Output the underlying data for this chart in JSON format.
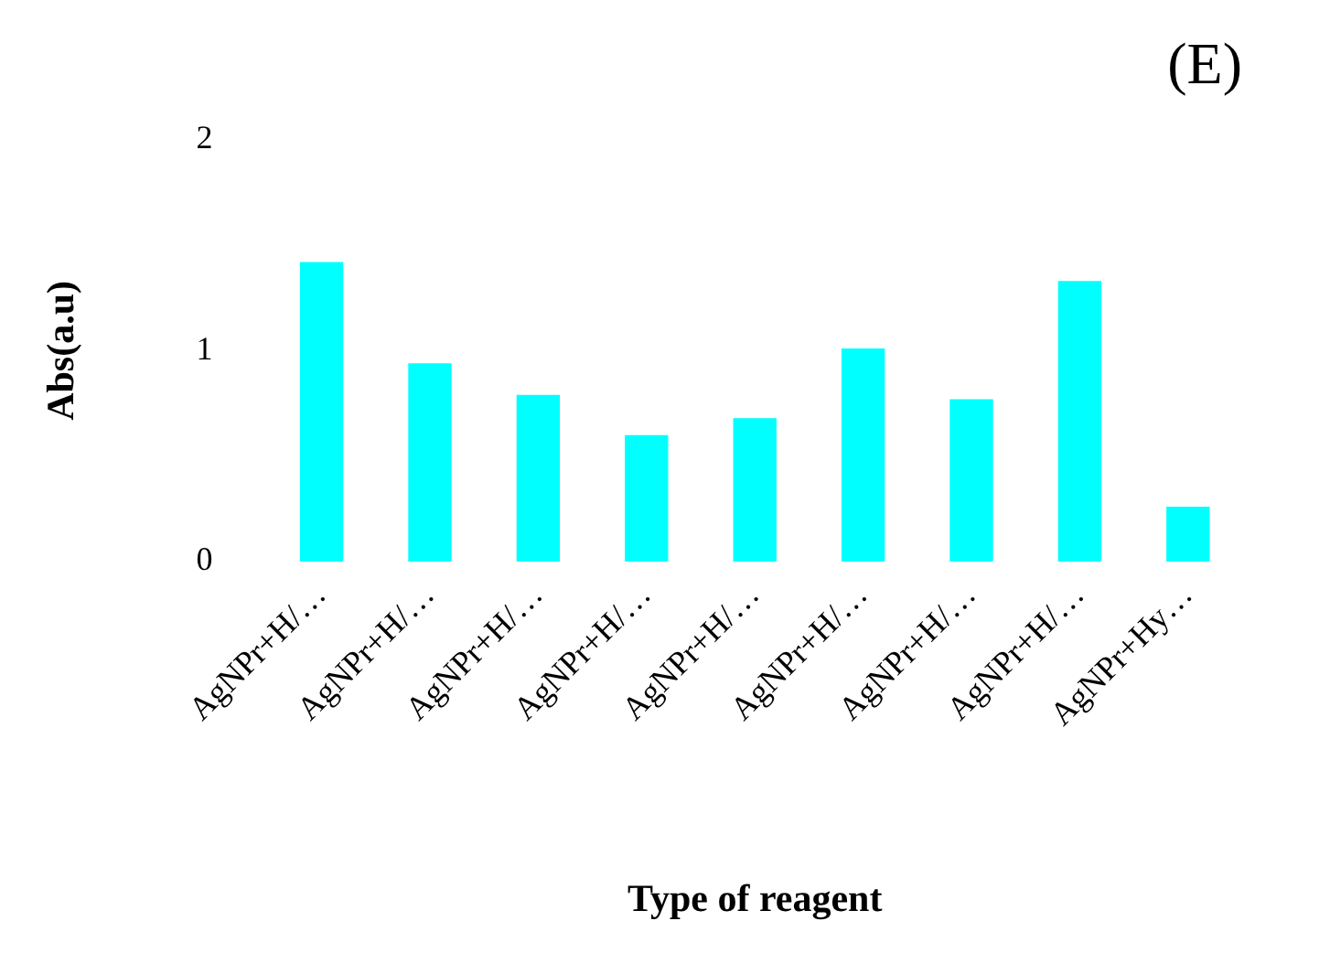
{
  "chart_data": {
    "type": "bar",
    "title": "(E)",
    "xlabel": "Type of reagent",
    "ylabel": "Abs(a.u)",
    "categories": [
      "AgNPr+H/…",
      "AgNPr+H/…",
      "AgNPr+H/…",
      "AgNPr+H/…",
      "AgNPr+H/…",
      "AgNPr+H/…",
      "AgNPr+H/…",
      "AgNPr+H/…",
      "AgNPr+Hy…"
    ],
    "values": [
      1.42,
      0.94,
      0.79,
      0.6,
      0.68,
      1.01,
      0.77,
      1.33,
      0.26
    ],
    "color": "#00ffff",
    "ylim": [
      0,
      2
    ],
    "yticks": [
      0,
      1,
      2
    ],
    "grid": false,
    "legend": false
  }
}
